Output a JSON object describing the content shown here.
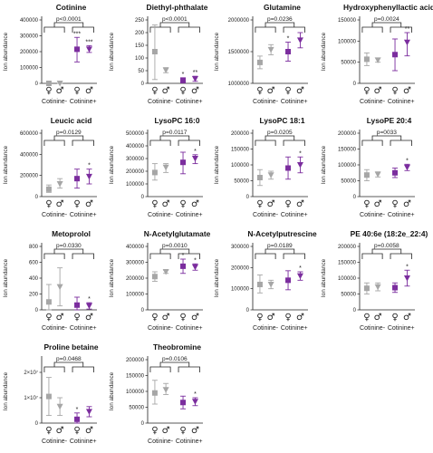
{
  "colors": {
    "cotinine_neg": "#a6a6a6",
    "cotinine_pos": "#7b2d9e",
    "ink": "#222222"
  },
  "chart_data": [
    {
      "type": "scatter",
      "title": "Cotinine",
      "ylabel": "Ion abundance",
      "pvalue": "p<0.0001",
      "ylim": [
        0,
        400000
      ],
      "yticks": [
        0,
        100000,
        200000,
        300000,
        400000
      ],
      "ytick_labels": [
        "0",
        "100000",
        "200000",
        "300000",
        "400000"
      ],
      "groups": [
        "Cotinine-",
        "Cotinine+"
      ],
      "sexes": [
        "♀",
        "♂",
        "♀",
        "♂"
      ],
      "points": [
        {
          "mean": 0,
          "lo": 0,
          "hi": 0,
          "stars": ""
        },
        {
          "mean": 0,
          "lo": 0,
          "hi": 0,
          "stars": ""
        },
        {
          "mean": 215000,
          "lo": 135000,
          "hi": 290000,
          "stars": "***"
        },
        {
          "mean": 215000,
          "lo": 195000,
          "hi": 238000,
          "stars": "***"
        }
      ]
    },
    {
      "type": "scatter",
      "title": "Diethyl-phthalate",
      "ylabel": "Ion abundance",
      "pvalue": "p<0.0001",
      "ylim": [
        0,
        250
      ],
      "yticks": [
        0,
        50,
        100,
        150,
        200,
        250
      ],
      "ytick_labels": [
        "0",
        "50",
        "100",
        "150",
        "200",
        "250"
      ],
      "groups": [
        "Cotinine-",
        "Cotinine+"
      ],
      "sexes": [
        "♀",
        "♂",
        "♀",
        "♂"
      ],
      "points": [
        {
          "mean": 125,
          "lo": 15,
          "hi": 230,
          "stars": ""
        },
        {
          "mean": 52,
          "lo": 42,
          "hi": 62,
          "stars": ""
        },
        {
          "mean": 12,
          "lo": 2,
          "hi": 22,
          "stars": "*"
        },
        {
          "mean": 18,
          "lo": 8,
          "hi": 28,
          "stars": "**"
        }
      ]
    },
    {
      "type": "scatter",
      "title": "Glutamine",
      "ylabel": "Ion abundance",
      "pvalue": "p=0.0236",
      "ylim": [
        1000000,
        2000000
      ],
      "yticks": [
        1000000,
        1500000,
        2000000
      ],
      "ytick_labels": [
        "1000000",
        "1500000",
        "2000000"
      ],
      "groups": [
        "Cotinine-",
        "Cotinine+"
      ],
      "sexes": [
        "♀",
        "♂",
        "♀",
        "♂"
      ],
      "points": [
        {
          "mean": 1330000,
          "lo": 1230000,
          "hi": 1430000,
          "stars": ""
        },
        {
          "mean": 1530000,
          "lo": 1450000,
          "hi": 1610000,
          "stars": ""
        },
        {
          "mean": 1500000,
          "lo": 1350000,
          "hi": 1650000,
          "stars": "*"
        },
        {
          "mean": 1680000,
          "lo": 1560000,
          "hi": 1800000,
          "stars": ""
        }
      ]
    },
    {
      "type": "scatter",
      "title": "Hydroxyphenyllactic acid",
      "ylabel": "Ion abundance",
      "pvalue": "p=0.0024",
      "ylim": [
        0,
        150000
      ],
      "yticks": [
        0,
        50000,
        100000,
        150000
      ],
      "ytick_labels": [
        "0",
        "50000",
        "100000",
        "150000"
      ],
      "groups": [
        "Cotinine-",
        "Cotinine+"
      ],
      "sexes": [
        "♀",
        "♂",
        "♀",
        "♂"
      ],
      "points": [
        {
          "mean": 57000,
          "lo": 42000,
          "hi": 72000,
          "stars": ""
        },
        {
          "mean": 55000,
          "lo": 50000,
          "hi": 60000,
          "stars": ""
        },
        {
          "mean": 68000,
          "lo": 30000,
          "hi": 105000,
          "stars": ""
        },
        {
          "mean": 97000,
          "lo": 65000,
          "hi": 120000,
          "stars": "**"
        }
      ]
    },
    {
      "type": "scatter",
      "title": "Leucic acid",
      "ylabel": "Ion abundance",
      "pvalue": "p=0.0129",
      "ylim": [
        0,
        600000
      ],
      "yticks": [
        0,
        200000,
        400000,
        600000
      ],
      "ytick_labels": [
        "0",
        "200000",
        "400000",
        "600000"
      ],
      "groups": [
        "Cotinine-",
        "Cotinine+"
      ],
      "sexes": [
        "♀",
        "♂",
        "♀",
        "♂"
      ],
      "points": [
        {
          "mean": 70000,
          "lo": 40000,
          "hi": 110000,
          "stars": ""
        },
        {
          "mean": 120000,
          "lo": 80000,
          "hi": 170000,
          "stars": ""
        },
        {
          "mean": 170000,
          "lo": 80000,
          "hi": 260000,
          "stars": ""
        },
        {
          "mean": 190000,
          "lo": 120000,
          "hi": 260000,
          "stars": "*"
        }
      ]
    },
    {
      "type": "scatter",
      "title": "LysoPC 16:0",
      "ylabel": "Ion abundance",
      "pvalue": "p=0.0117",
      "ylim": [
        0,
        500000
      ],
      "yticks": [
        0,
        100000,
        200000,
        300000,
        400000,
        500000
      ],
      "ytick_labels": [
        "0",
        "100000",
        "200000",
        "300000",
        "400000",
        "500000"
      ],
      "groups": [
        "Cotinine-",
        "Cotinine+"
      ],
      "sexes": [
        "♀",
        "♂",
        "♀",
        "♂"
      ],
      "points": [
        {
          "mean": 190000,
          "lo": 130000,
          "hi": 260000,
          "stars": ""
        },
        {
          "mean": 230000,
          "lo": 190000,
          "hi": 260000,
          "stars": ""
        },
        {
          "mean": 270000,
          "lo": 180000,
          "hi": 350000,
          "stars": ""
        },
        {
          "mean": 300000,
          "lo": 260000,
          "hi": 330000,
          "stars": "*"
        }
      ]
    },
    {
      "type": "scatter",
      "title": "LysoPC 18:1",
      "ylabel": "Ion abundance",
      "pvalue": "p=0.0205",
      "ylim": [
        0,
        200000
      ],
      "yticks": [
        0,
        50000,
        100000,
        150000,
        200000
      ],
      "ytick_labels": [
        "0",
        "50000",
        "100000",
        "150000",
        "200000"
      ],
      "groups": [
        "Cotinine-",
        "Cotinine+"
      ],
      "sexes": [
        "♀",
        "♂",
        "♀",
        "♂"
      ],
      "points": [
        {
          "mean": 60000,
          "lo": 35000,
          "hi": 85000,
          "stars": ""
        },
        {
          "mean": 68000,
          "lo": 55000,
          "hi": 80000,
          "stars": ""
        },
        {
          "mean": 90000,
          "lo": 55000,
          "hi": 125000,
          "stars": ""
        },
        {
          "mean": 100000,
          "lo": 75000,
          "hi": 125000,
          "stars": "*"
        }
      ]
    },
    {
      "type": "scatter",
      "title": "LysoPE 20:4",
      "ylabel": "Ion abundance",
      "pvalue": "p=0033",
      "ylim": [
        0,
        200000
      ],
      "yticks": [
        0,
        50000,
        100000,
        150000,
        200000
      ],
      "ytick_labels": [
        "0",
        "50000",
        "100000",
        "150000",
        "200000"
      ],
      "groups": [
        "Cotinine-",
        "Cotinine+"
      ],
      "sexes": [
        "♀",
        "♂",
        "♀",
        "♂"
      ],
      "points": [
        {
          "mean": 68000,
          "lo": 50000,
          "hi": 85000,
          "stars": ""
        },
        {
          "mean": 70000,
          "lo": 62000,
          "hi": 78000,
          "stars": ""
        },
        {
          "mean": 75000,
          "lo": 60000,
          "hi": 90000,
          "stars": ""
        },
        {
          "mean": 92000,
          "lo": 82000,
          "hi": 102000,
          "stars": "*"
        }
      ]
    },
    {
      "type": "scatter",
      "title": "Metoprolol",
      "ylabel": "Ion abundance",
      "pvalue": "p=0.0330",
      "ylim": [
        0,
        800
      ],
      "yticks": [
        0,
        200,
        400,
        600,
        800
      ],
      "ytick_labels": [
        "0",
        "200",
        "400",
        "600",
        "800"
      ],
      "groups": [
        "Cotinine-",
        "Cotinine+"
      ],
      "sexes": [
        "♀",
        "♂",
        "♀",
        "♂"
      ],
      "points": [
        {
          "mean": 100,
          "lo": 0,
          "hi": 320,
          "stars": ""
        },
        {
          "mean": 290,
          "lo": 50,
          "hi": 530,
          "stars": ""
        },
        {
          "mean": 60,
          "lo": 0,
          "hi": 160,
          "stars": ""
        },
        {
          "mean": 50,
          "lo": 10,
          "hi": 90,
          "stars": "*"
        }
      ]
    },
    {
      "type": "scatter",
      "title": "N-Acetylglutamate",
      "ylabel": "Ion abundance",
      "pvalue": "p=0.0010",
      "ylim": [
        0,
        400000
      ],
      "yticks": [
        0,
        100000,
        200000,
        300000,
        400000
      ],
      "ytick_labels": [
        "0",
        "100000",
        "200000",
        "300000",
        "400000"
      ],
      "groups": [
        "Cotinine-",
        "Cotinine+"
      ],
      "sexes": [
        "♀",
        "♂",
        "♀",
        "♂"
      ],
      "points": [
        {
          "mean": 210000,
          "lo": 180000,
          "hi": 240000,
          "stars": ""
        },
        {
          "mean": 240000,
          "lo": 230000,
          "hi": 250000,
          "stars": ""
        },
        {
          "mean": 275000,
          "lo": 230000,
          "hi": 320000,
          "stars": "*"
        },
        {
          "mean": 270000,
          "lo": 250000,
          "hi": 290000,
          "stars": "*"
        }
      ]
    },
    {
      "type": "scatter",
      "title": "N-Acetylputrescine",
      "ylabel": "Ion abundance",
      "pvalue": "p=0.0189",
      "ylim": [
        0,
        300000
      ],
      "yticks": [
        0,
        100000,
        200000,
        300000
      ],
      "ytick_labels": [
        "0",
        "100000",
        "200000",
        "300000"
      ],
      "groups": [
        "Cotinine-",
        "Cotinine+"
      ],
      "sexes": [
        "♀",
        "♂",
        "♀",
        "♂"
      ],
      "points": [
        {
          "mean": 120000,
          "lo": 80000,
          "hi": 165000,
          "stars": ""
        },
        {
          "mean": 120000,
          "lo": 100000,
          "hi": 140000,
          "stars": ""
        },
        {
          "mean": 140000,
          "lo": 95000,
          "hi": 185000,
          "stars": ""
        },
        {
          "mean": 160000,
          "lo": 140000,
          "hi": 180000,
          "stars": "*"
        }
      ]
    },
    {
      "type": "scatter",
      "title": "PE 40:6e (18:2e_22:4)",
      "ylabel": "Ion abundance",
      "pvalue": "p=0.0058",
      "ylim": [
        0,
        200000
      ],
      "yticks": [
        0,
        50000,
        100000,
        150000,
        200000
      ],
      "ytick_labels": [
        "0",
        "50000",
        "100000",
        "150000",
        "200000"
      ],
      "groups": [
        "Cotinine-",
        "Cotinine+"
      ],
      "sexes": [
        "♀",
        "♂",
        "♀",
        "♂"
      ],
      "points": [
        {
          "mean": 68000,
          "lo": 50000,
          "hi": 85000,
          "stars": ""
        },
        {
          "mean": 72000,
          "lo": 60000,
          "hi": 85000,
          "stars": ""
        },
        {
          "mean": 70000,
          "lo": 55000,
          "hi": 85000,
          "stars": ""
        },
        {
          "mean": 100000,
          "lo": 75000,
          "hi": 125000,
          "stars": "*"
        }
      ]
    },
    {
      "type": "scatter",
      "title": "Proline betaine",
      "ylabel": "Ion abundance",
      "pvalue": "p=0.0468",
      "ylim": [
        0,
        25000000
      ],
      "yticks": [
        0,
        10000000,
        20000000
      ],
      "ytick_labels": [
        "0",
        "1×10⁷",
        "2×10⁷"
      ],
      "groups": [
        "Cotinine-",
        "Cotinine+"
      ],
      "sexes": [
        "♀",
        "♂",
        "♀",
        "♂"
      ],
      "points": [
        {
          "mean": 10500000,
          "lo": 3000000,
          "hi": 18000000,
          "stars": ""
        },
        {
          "mean": 6500000,
          "lo": 3000000,
          "hi": 10000000,
          "stars": ""
        },
        {
          "mean": 1500000,
          "lo": 0,
          "hi": 4000000,
          "stars": "*"
        },
        {
          "mean": 4500000,
          "lo": 2500000,
          "hi": 6500000,
          "stars": ""
        }
      ]
    },
    {
      "type": "scatter",
      "title": "Theobromine",
      "ylabel": "Ion abundance",
      "pvalue": "p=0.0106",
      "ylim": [
        0,
        200000
      ],
      "yticks": [
        0,
        50000,
        100000,
        150000,
        200000
      ],
      "ytick_labels": [
        "0",
        "50000",
        "100000",
        "150000",
        "200000"
      ],
      "groups": [
        "Cotinine-",
        "Cotinine+"
      ],
      "sexes": [
        "♀",
        "♂",
        "♀",
        "♂"
      ],
      "points": [
        {
          "mean": 95000,
          "lo": 60000,
          "hi": 135000,
          "stars": ""
        },
        {
          "mean": 105000,
          "lo": 90000,
          "hi": 125000,
          "stars": ""
        },
        {
          "mean": 65000,
          "lo": 45000,
          "hi": 85000,
          "stars": ""
        },
        {
          "mean": 68000,
          "lo": 55000,
          "hi": 80000,
          "stars": "*"
        }
      ]
    }
  ]
}
